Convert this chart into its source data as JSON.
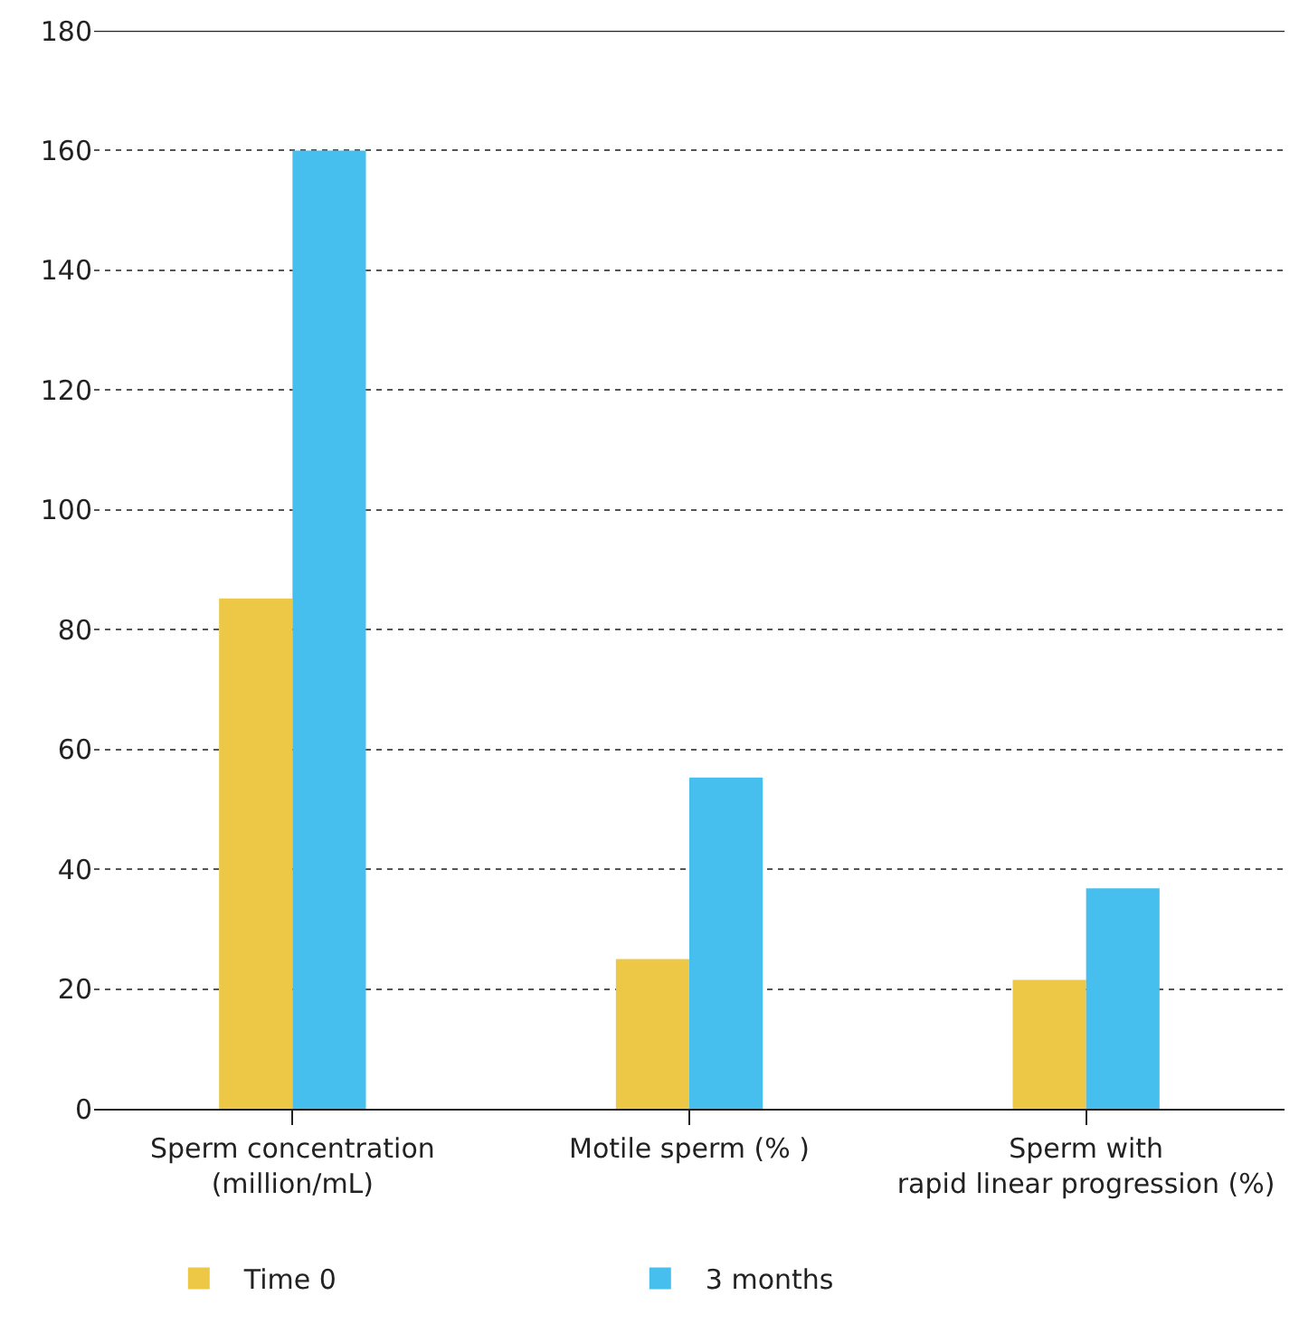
{
  "chart_data": {
    "type": "bar",
    "categories": [
      "Sperm concentration\n(million/mL)",
      "Motile sperm (% )",
      "Sperm with\nrapid linear progression (%)"
    ],
    "series": [
      {
        "name": "Time 0",
        "color": "#ecc846",
        "values": [
          85.2,
          25,
          21.5
        ]
      },
      {
        "name": "3 months",
        "color": "#47bfee",
        "values": [
          160,
          55.3,
          36.8
        ]
      }
    ],
    "ylim": [
      0,
      180
    ],
    "yticks": [
      0,
      20,
      40,
      60,
      80,
      100,
      120,
      140,
      160,
      180
    ],
    "grid": "y",
    "legend": "bottom"
  }
}
